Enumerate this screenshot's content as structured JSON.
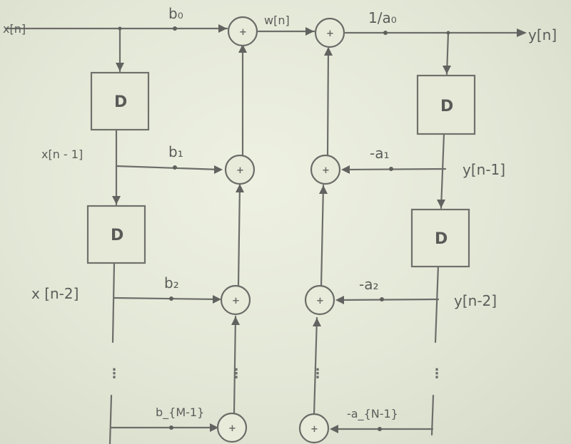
{
  "signals": {
    "input": "x[n]",
    "x_n1": "x[n - 1]",
    "x_n2": "x [n-2]",
    "w": "w[n]",
    "output": "y[n]",
    "y_n1": "y[n-1]",
    "y_n2": "y[n-2]"
  },
  "coefficients": {
    "b0": "b₀",
    "b1": "b₁",
    "b2": "b₂",
    "bM": "b_{M-1}",
    "gain": "1/a₀",
    "a1": "-a₁",
    "a2": "-a₂",
    "aN": "-a_{N-1}"
  },
  "delay_label": "D",
  "adder_symbol": "+",
  "ellipsis": "⋮"
}
